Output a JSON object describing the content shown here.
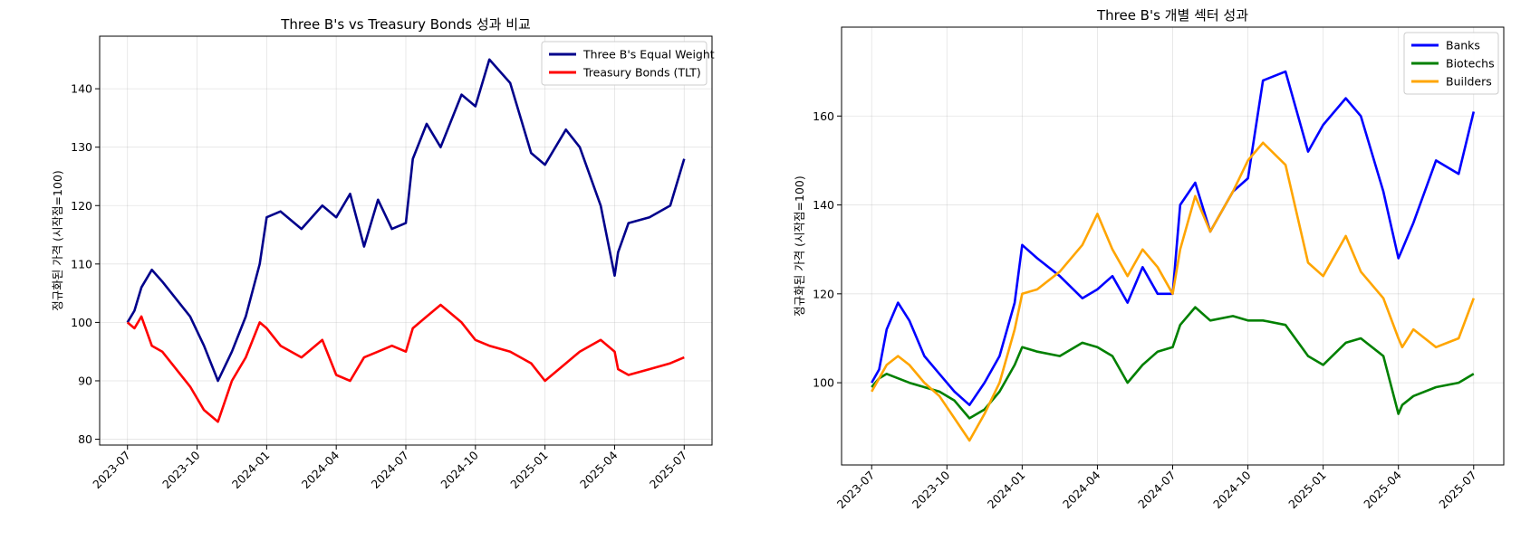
{
  "chart_data": [
    {
      "type": "line",
      "title": "Three B's vs Treasury Bonds 성과 비교",
      "xlabel": "",
      "ylabel": "정규화된 가격 (시작점=100)",
      "x_ticks": [
        "2023-07",
        "2023-10",
        "2024-01",
        "2024-04",
        "2024-07",
        "2024-10",
        "2025-01",
        "2025-04",
        "2025-07"
      ],
      "y_ticks": [
        80,
        90,
        100,
        110,
        120,
        130,
        140
      ],
      "xlim": [
        -0.4,
        8.4
      ],
      "ylim": [
        79,
        149
      ],
      "grid": true,
      "legend_position": "top-right",
      "x": [
        0,
        0.1,
        0.2,
        0.35,
        0.5,
        0.7,
        0.9,
        1.1,
        1.3,
        1.5,
        1.7,
        1.9,
        2.0,
        2.2,
        2.5,
        2.8,
        3.0,
        3.2,
        3.4,
        3.6,
        3.8,
        4.0,
        4.1,
        4.3,
        4.5,
        4.8,
        5.0,
        5.2,
        5.5,
        5.8,
        6.0,
        6.3,
        6.5,
        6.8,
        7.0,
        7.05,
        7.2,
        7.5,
        7.8,
        8.0
      ],
      "series": [
        {
          "name": "Three B's Equal Weight",
          "color": "#00008b",
          "values": [
            100,
            102,
            106,
            109,
            107,
            104,
            101,
            96,
            90,
            95,
            101,
            110,
            118,
            119,
            116,
            120,
            118,
            122,
            113,
            121,
            116,
            117,
            128,
            134,
            130,
            139,
            137,
            145,
            141,
            129,
            127,
            133,
            130,
            120,
            108,
            112,
            117,
            118,
            120,
            128
          ]
        },
        {
          "name": "Treasury Bonds (TLT)",
          "color": "#ff0000",
          "values": [
            100,
            99,
            101,
            96,
            95,
            92,
            89,
            85,
            83,
            90,
            94,
            100,
            99,
            96,
            94,
            97,
            91,
            90,
            94,
            95,
            96,
            95,
            99,
            101,
            103,
            100,
            97,
            96,
            95,
            93,
            90,
            93,
            95,
            97,
            95,
            92,
            91,
            92,
            93,
            94
          ]
        }
      ]
    },
    {
      "type": "line",
      "title": "Three B's 개별 섹터 성과",
      "xlabel": "",
      "ylabel": "정규화된 가격 (시작점=100)",
      "x_ticks": [
        "2023-07",
        "2023-10",
        "2024-01",
        "2024-04",
        "2024-07",
        "2024-10",
        "2025-01",
        "2025-04",
        "2025-07"
      ],
      "y_ticks": [
        100,
        120,
        140,
        160
      ],
      "xlim": [
        -0.4,
        8.4
      ],
      "ylim": [
        81.5,
        180
      ],
      "grid": true,
      "legend_position": "top-right",
      "x": [
        0,
        0.1,
        0.2,
        0.35,
        0.5,
        0.7,
        0.9,
        1.1,
        1.3,
        1.5,
        1.7,
        1.9,
        2.0,
        2.2,
        2.5,
        2.8,
        3.0,
        3.2,
        3.4,
        3.6,
        3.8,
        4.0,
        4.1,
        4.3,
        4.5,
        4.8,
        5.0,
        5.2,
        5.5,
        5.8,
        6.0,
        6.3,
        6.5,
        6.8,
        7.0,
        7.05,
        7.2,
        7.5,
        7.8,
        8.0
      ],
      "series": [
        {
          "name": "Banks",
          "color": "#0000ff",
          "values": [
            100,
            103,
            112,
            118,
            114,
            106,
            102,
            98,
            95,
            100,
            106,
            118,
            131,
            128,
            124,
            119,
            121,
            124,
            118,
            126,
            120,
            120,
            140,
            145,
            134,
            143,
            146,
            168,
            170,
            152,
            158,
            164,
            160,
            143,
            128,
            130,
            136,
            150,
            147,
            161
          ]
        },
        {
          "name": "Biotechs",
          "color": "#008000",
          "values": [
            99,
            101,
            102,
            101,
            100,
            99,
            98,
            96,
            92,
            94,
            98,
            104,
            108,
            107,
            106,
            109,
            108,
            106,
            100,
            104,
            107,
            108,
            113,
            117,
            114,
            115,
            114,
            114,
            113,
            106,
            104,
            109,
            110,
            106,
            93,
            95,
            97,
            99,
            100,
            102
          ]
        },
        {
          "name": "Builders",
          "color": "#ffa500",
          "values": [
            98,
            101,
            104,
            106,
            104,
            100,
            97,
            92,
            87,
            93,
            100,
            112,
            120,
            121,
            125,
            131,
            138,
            130,
            124,
            130,
            126,
            120,
            130,
            142,
            134,
            143,
            150,
            154,
            149,
            127,
            124,
            133,
            125,
            119,
            110,
            108,
            112,
            108,
            110,
            119
          ]
        }
      ]
    }
  ]
}
